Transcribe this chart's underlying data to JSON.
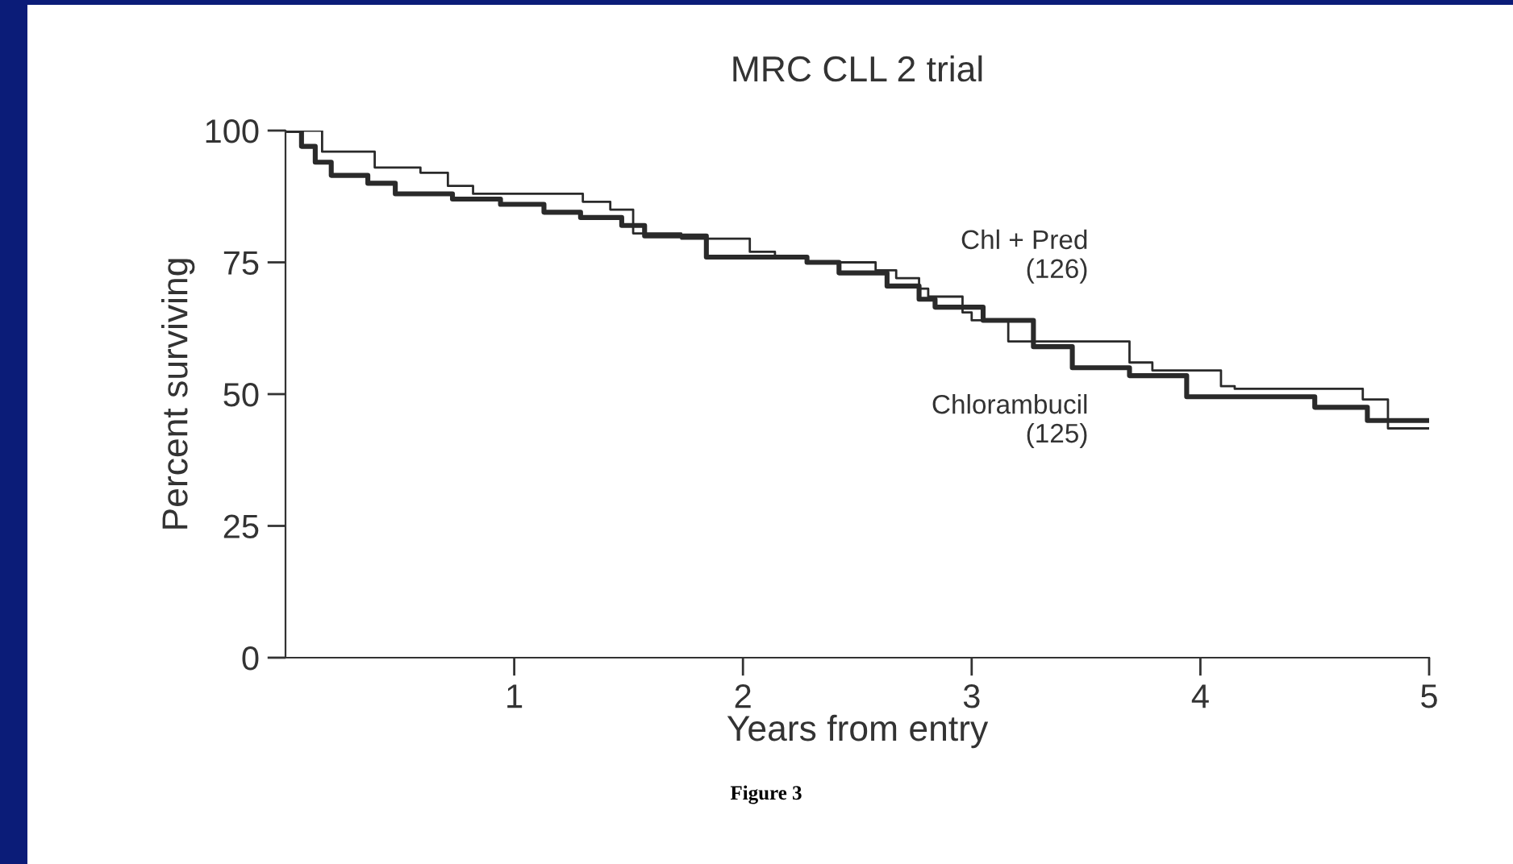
{
  "chart_data": {
    "type": "step",
    "title": "MRC CLL 2 trial",
    "xlabel": "Years from entry",
    "ylabel": "Percent surviving",
    "xlim": [
      0,
      5
    ],
    "xticks": [
      1,
      2,
      3,
      4,
      5
    ],
    "ylim": [
      0,
      100
    ],
    "yticks": [
      0,
      25,
      50,
      75,
      100
    ],
    "grid": false,
    "legend": false,
    "series": [
      {
        "name": "Chl + Pred\n(126)",
        "color": "#2a2a2a",
        "x": [
          0,
          0.16,
          0.39,
          0.59,
          0.71,
          0.82,
          1.3,
          1.42,
          1.52,
          1.73,
          2.03,
          2.14,
          2.28,
          2.58,
          2.67,
          2.77,
          2.81,
          2.96,
          3.0,
          3.16,
          3.69,
          3.79,
          4.09,
          4.15,
          4.71,
          4.82,
          5.0
        ],
        "values": [
          100,
          96,
          93,
          92,
          89.5,
          88,
          86.5,
          85,
          80.5,
          79.5,
          77,
          76,
          75,
          73.5,
          72,
          70,
          68.5,
          65.5,
          64,
          60,
          56,
          54.5,
          51.5,
          51,
          49,
          43.5,
          43.5
        ]
      },
      {
        "name": "Chlorambucil\n(125)",
        "color": "#2a2a2a",
        "x": [
          0,
          0.07,
          0.13,
          0.2,
          0.36,
          0.48,
          0.73,
          0.94,
          1.13,
          1.29,
          1.47,
          1.57,
          1.84,
          2.28,
          2.42,
          2.63,
          2.77,
          2.84,
          3.05,
          3.27,
          3.44,
          3.69,
          3.94,
          4.5,
          4.73,
          5.0
        ],
        "values": [
          100,
          97,
          94,
          91.5,
          90,
          88,
          87,
          86,
          84.5,
          83.5,
          82,
          80,
          76,
          75,
          73,
          70.5,
          68,
          66.5,
          64,
          59,
          55,
          53.5,
          49.5,
          47.5,
          45,
          45
        ]
      }
    ],
    "annotations": [
      "Figure 3"
    ]
  }
}
